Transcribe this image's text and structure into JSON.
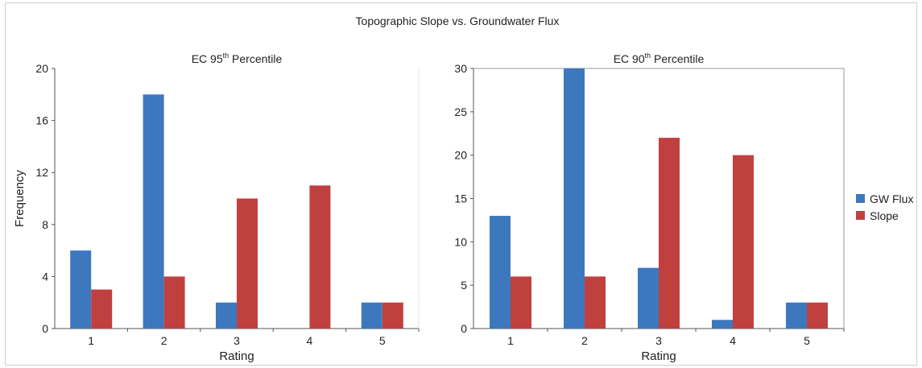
{
  "figure": {
    "title": "Topographic Slope vs. Groundwater Flux",
    "legend": [
      {
        "name": "GW Flux",
        "color": "#3d78bf"
      },
      {
        "name": "Slope",
        "color": "#c0403f"
      }
    ]
  },
  "chart_data": [
    {
      "type": "bar",
      "title_main": "EC 95",
      "title_sup": "th",
      "title_rest": " Percentile",
      "xlabel": "Rating",
      "ylabel": "Frequency",
      "categories": [
        "1",
        "2",
        "3",
        "4",
        "5"
      ],
      "ylim": [
        0,
        20
      ],
      "yticks": [
        "0",
        "4",
        "8",
        "12",
        "16",
        "20"
      ],
      "series": [
        {
          "name": "GW Flux",
          "color": "#3d78bf",
          "values": [
            6,
            18,
            2,
            0,
            2
          ]
        },
        {
          "name": "Slope",
          "color": "#c0403f",
          "values": [
            3,
            4,
            10,
            11,
            2
          ]
        }
      ],
      "grid": false,
      "legend": "none"
    },
    {
      "type": "bar",
      "title_main": "EC 90",
      "title_sup": "th",
      "title_rest": " Percentile",
      "xlabel": "Rating",
      "ylabel": "",
      "categories": [
        "1",
        "2",
        "3",
        "4",
        "5"
      ],
      "ylim": [
        0,
        30
      ],
      "yticks": [
        "0",
        "5",
        "10",
        "15",
        "20",
        "25",
        "30"
      ],
      "series": [
        {
          "name": "GW Flux",
          "color": "#3d78bf",
          "values": [
            13,
            30,
            7,
            1,
            3
          ]
        },
        {
          "name": "Slope",
          "color": "#c0403f",
          "values": [
            6,
            6,
            22,
            20,
            3
          ]
        }
      ],
      "grid": false,
      "legend": "right"
    }
  ]
}
